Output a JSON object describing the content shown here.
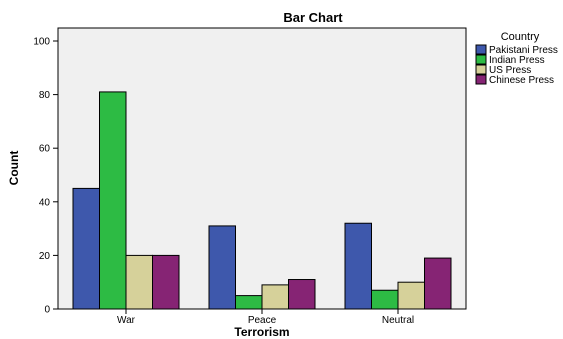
{
  "chart_data": {
    "type": "bar",
    "title": "Bar Chart",
    "xlabel": "Terrorism",
    "ylabel": "Count",
    "categories": [
      "War",
      "Peace",
      "Neutral"
    ],
    "ylim": [
      0,
      100
    ],
    "yticks": [
      0,
      20,
      40,
      60,
      80,
      100
    ],
    "legend_title": "Country",
    "legend_position": "top-right",
    "grid": false,
    "plot_background": "#f0f0f0",
    "series": [
      {
        "name": "Pakistani Press",
        "color": "#3e58ac",
        "values": [
          45,
          31,
          32
        ]
      },
      {
        "name": "Indian Press",
        "color": "#2dbb44",
        "values": [
          81,
          5,
          7
        ]
      },
      {
        "name": "US Press",
        "color": "#d6d19a",
        "values": [
          20,
          9,
          10
        ]
      },
      {
        "name": "Chinese Press",
        "color": "#862474",
        "values": [
          20,
          11,
          19
        ]
      }
    ]
  }
}
